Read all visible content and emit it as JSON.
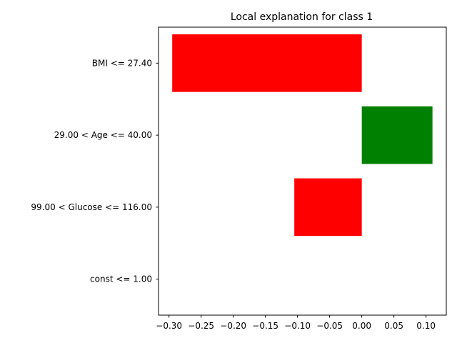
{
  "chart_data": {
    "type": "bar",
    "orientation": "horizontal",
    "title": "Local explanation for class 1",
    "xlabel": "",
    "ylabel": "",
    "categories": [
      "BMI <= 27.40",
      "29.00 < Age <= 40.00",
      "99.00 < Glucose <= 116.00",
      "const <= 1.00"
    ],
    "values": [
      -0.295,
      0.11,
      -0.105,
      0.0
    ],
    "colors": [
      "#ff0000",
      "#008000",
      "#ff0000",
      "#008000"
    ],
    "xlim": [
      -0.3163,
      0.1315
    ],
    "xticks": [
      -0.3,
      -0.25,
      -0.2,
      -0.15,
      -0.1,
      -0.05,
      0.0,
      0.05,
      0.1
    ],
    "xtick_labels": [
      "−0.30",
      "−0.25",
      "−0.20",
      "−0.15",
      "−0.10",
      "−0.05",
      "0.00",
      "0.05",
      "0.10"
    ],
    "grid": false,
    "legend": "none",
    "positive_color": "#008000",
    "negative_color": "#ff0000"
  }
}
